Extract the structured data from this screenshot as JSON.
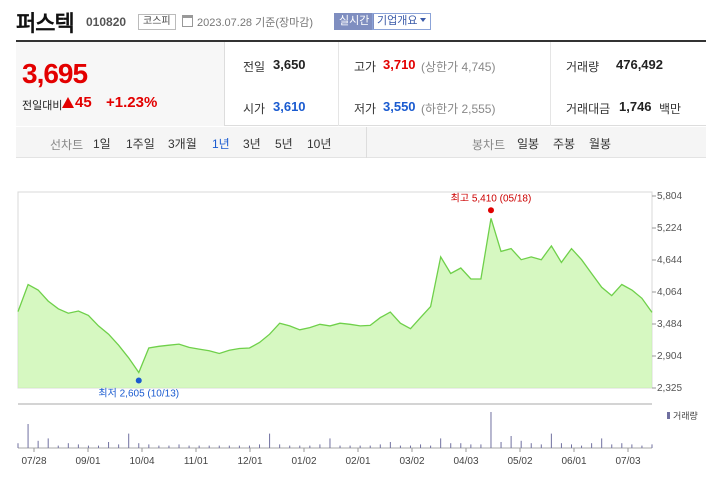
{
  "header": {
    "stock_name": "퍼스텍",
    "stock_code": "010820",
    "market": "코스피",
    "date_text": "2023.07.28  기준(장마감)",
    "realtime_label": "실시간",
    "company_label": "기업개요",
    "icons": {
      "date": "calendar-icon",
      "dropdown": "caret-down-icon"
    }
  },
  "summary": {
    "current_price": "3,695",
    "change_label": "전일대비",
    "change_value": "45",
    "change_rate": "+1.23%",
    "prev_close": {
      "label": "전일",
      "value": "3,650"
    },
    "open": {
      "label": "시가",
      "value": "3,610"
    },
    "high": {
      "label": "고가",
      "value": "3,710",
      "limit": "(상한가 4,745)"
    },
    "low": {
      "label": "저가",
      "value": "3,550",
      "limit": "(하한가 2,555)"
    },
    "volume": {
      "label": "거래량",
      "value": "476,492"
    },
    "amount": {
      "label": "거래대금",
      "value": "1,746",
      "unit": "백만"
    },
    "colors": {
      "up": "#e30000",
      "down": "#1a5bd0"
    }
  },
  "period_bar": {
    "line_label": "선차트",
    "periods": [
      "1일",
      "1주일",
      "3개월",
      "1년",
      "3년",
      "5년",
      "10년"
    ],
    "active_period": "1년",
    "candle_label": "봉차트",
    "candles": [
      "일봉",
      "주봉",
      "월봉"
    ]
  },
  "chart_data": {
    "type": "area",
    "y_ticks": [
      "5,804",
      "5,224",
      "4,644",
      "4,064",
      "3,484",
      "2,904",
      "2,325"
    ],
    "ylim": [
      2325,
      5804
    ],
    "x_labels": [
      "07/28",
      "09/01",
      "10/04",
      "11/01",
      "12/01",
      "01/02",
      "02/01",
      "03/02",
      "04/03",
      "05/02",
      "06/01",
      "07/03"
    ],
    "series": [
      {
        "values": [
          3710,
          4200,
          4100,
          3900,
          3760,
          3680,
          3720,
          3640,
          3450,
          3300,
          3100,
          2870,
          2605,
          3050,
          3080,
          3100,
          3120,
          3060,
          3030,
          3000,
          2950,
          3010,
          3040,
          3050,
          3150,
          3300,
          3500,
          3450,
          3380,
          3420,
          3480,
          3450,
          3500,
          3480,
          3450,
          3460,
          3600,
          3700,
          3500,
          3400,
          3600,
          3800,
          4700,
          4400,
          4500,
          4300,
          4300,
          5400,
          4800,
          4850,
          4650,
          4700,
          4650,
          4900,
          4600,
          4850,
          4650,
          4400,
          4150,
          4000,
          4200,
          4100,
          3950,
          3695
        ]
      }
    ],
    "fill_color": "#c8f5ac",
    "line_color": "#6fd04a",
    "high_annotation": "최고 5,410 (05/18)",
    "low_annotation": "최저 2,605 (10/13)",
    "volume_label": "거래량",
    "volume_values": [
      4,
      20,
      6,
      8,
      2,
      4,
      3,
      2,
      2,
      5,
      3,
      12,
      4,
      3,
      2,
      2,
      3,
      2,
      2,
      2,
      2,
      2,
      2,
      2,
      3,
      12,
      3,
      2,
      2,
      2,
      3,
      8,
      2,
      2,
      2,
      2,
      3,
      5,
      2,
      2,
      3,
      2,
      8,
      4,
      4,
      3,
      3,
      30,
      5,
      10,
      6,
      4,
      3,
      12,
      4,
      3,
      2,
      4,
      8,
      3,
      4,
      3,
      2,
      3
    ]
  }
}
